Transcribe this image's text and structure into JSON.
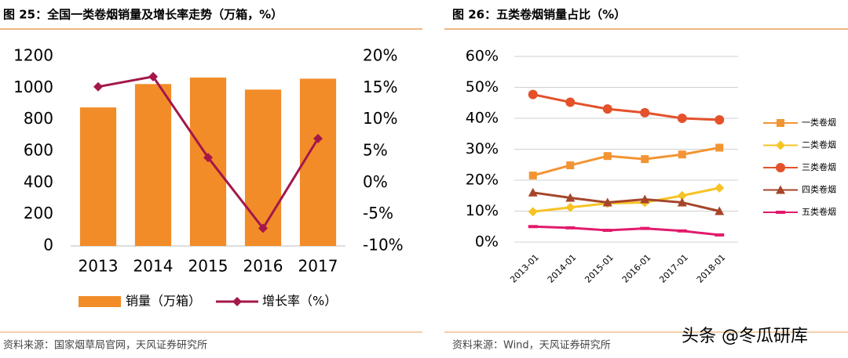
{
  "chart_data": [
    {
      "type": "combo",
      "title": "图 25：全国一类卷烟销量及增长率走势（万箱，%）",
      "categories": [
        "2013",
        "2014",
        "2015",
        "2016",
        "2017"
      ],
      "series": [
        {
          "name": "销量（万箱）",
          "type": "bar",
          "color": "#f28c28",
          "values": [
            877,
            1025,
            1066,
            990,
            1059
          ]
        },
        {
          "name": "增长率（%）",
          "type": "line",
          "axis": "y2",
          "color": "#a3174a",
          "marker": "diamond",
          "values": [
            15.2,
            16.8,
            4.0,
            -7.2,
            7.0
          ]
        }
      ],
      "ylim": [
        0,
        1200
      ],
      "yticks": [
        0,
        200,
        400,
        600,
        800,
        1000,
        1200
      ],
      "y2lim": [
        -10,
        20
      ],
      "y2ticks": [
        {
          "value": -10,
          "label": "-10%"
        },
        {
          "value": -5,
          "label": "-5%"
        },
        {
          "value": 0,
          "label": "0%"
        },
        {
          "value": 5,
          "label": "5%"
        },
        {
          "value": 10,
          "label": "10%"
        },
        {
          "value": 15,
          "label": "15%"
        },
        {
          "value": 20,
          "label": "20%"
        }
      ],
      "grid": false,
      "legend": "bottom"
    },
    {
      "type": "line",
      "title": "图 26：五类卷烟销量占比（%）",
      "categories": [
        "2013-01",
        "2014-01",
        "2015-01",
        "2016-01",
        "2017-01",
        "2018-01"
      ],
      "series": [
        {
          "name": "一类卷烟",
          "color": "#f39433",
          "marker": "square",
          "values": [
            21.5,
            24.8,
            27.8,
            26.8,
            28.3,
            30.5
          ]
        },
        {
          "name": "二类卷烟",
          "color": "#f7c325",
          "marker": "diamond",
          "values": [
            9.8,
            11.2,
            12.5,
            12.8,
            15.0,
            17.5
          ]
        },
        {
          "name": "三类卷烟",
          "color": "#e4512b",
          "marker": "circle",
          "values": [
            47.7,
            45.2,
            43.0,
            41.8,
            40.0,
            39.5
          ]
        },
        {
          "name": "四类卷烟",
          "color": "#a5452a",
          "marker": "triangle",
          "values": [
            16.0,
            14.3,
            12.8,
            13.8,
            12.8,
            10.0
          ]
        },
        {
          "name": "五类卷烟",
          "color": "#e21a6c",
          "marker": "dash",
          "values": [
            5.0,
            4.6,
            3.8,
            4.4,
            3.6,
            2.3
          ]
        }
      ],
      "ylim": [
        0,
        60
      ],
      "yticks": [
        {
          "value": 0,
          "label": "0%"
        },
        {
          "value": 10,
          "label": "10%"
        },
        {
          "value": 20,
          "label": "20%"
        },
        {
          "value": 30,
          "label": "30%"
        },
        {
          "value": 40,
          "label": "40%"
        },
        {
          "value": 50,
          "label": "50%"
        },
        {
          "value": 60,
          "label": "60%"
        }
      ],
      "grid": true,
      "legend": "right"
    }
  ],
  "sources": [
    "资料来源：国家烟草局官网，天风证券研究所",
    "资料来源：Wind，天风证券研究所"
  ],
  "watermark": "头条 @冬瓜研库"
}
